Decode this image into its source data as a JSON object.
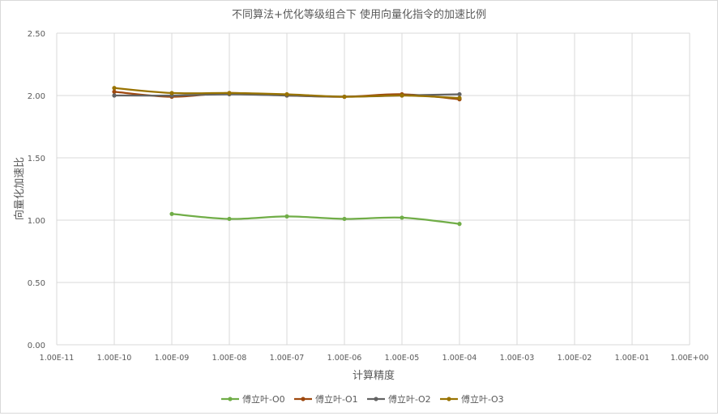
{
  "chart_data": {
    "type": "line",
    "title": "不同算法+优化等级组合下 使用向量化指令的加速比例",
    "xlabel": "计算精度",
    "ylabel": "向量化加速比",
    "x_scale": "log",
    "x_ticks": [
      "1.00E-11",
      "1.00E-10",
      "1.00E-09",
      "1.00E-08",
      "1.00E-07",
      "1.00E-06",
      "1.00E-05",
      "1.00E-04",
      "1.00E-03",
      "1.00E-02",
      "1.00E-01",
      "1.00E+00"
    ],
    "x_tick_values": [
      1e-11,
      1e-10,
      1e-09,
      1e-08,
      1e-07,
      1e-06,
      1e-05,
      0.0001,
      0.001,
      0.01,
      0.1,
      1
    ],
    "ylim": [
      0,
      2.5
    ],
    "y_ticks": [
      "0.00",
      "0.50",
      "1.00",
      "1.50",
      "2.00",
      "2.50"
    ],
    "y_tick_values": [
      0,
      0.5,
      1,
      1.5,
      2,
      2.5
    ],
    "grid": true,
    "legend_position": "bottom",
    "series": [
      {
        "name": "傅立叶-O0",
        "color": "#70ad47",
        "x": [
          1e-09,
          1e-08,
          1e-07,
          1e-06,
          1e-05,
          0.0001
        ],
        "values": [
          1.05,
          1.01,
          1.03,
          1.01,
          1.02,
          0.97
        ]
      },
      {
        "name": "傅立叶-O1",
        "color": "#9e480e",
        "x": [
          1e-10,
          1e-09,
          1e-08,
          1e-07,
          1e-06,
          1e-05,
          0.0001
        ],
        "values": [
          2.03,
          1.99,
          2.02,
          2.0,
          1.99,
          2.01,
          1.97
        ]
      },
      {
        "name": "傅立叶-O2",
        "color": "#636363",
        "x": [
          1e-10,
          1e-09,
          1e-08,
          1e-07,
          1e-06,
          1e-05,
          0.0001
        ],
        "values": [
          2.0,
          2.0,
          2.01,
          2.0,
          1.99,
          2.0,
          2.01
        ]
      },
      {
        "name": "傅立叶-O3",
        "color": "#997300",
        "x": [
          1e-10,
          1e-09,
          1e-08,
          1e-07,
          1e-06,
          1e-05,
          0.0001
        ],
        "values": [
          2.06,
          2.02,
          2.02,
          2.01,
          1.99,
          2.0,
          1.98
        ]
      }
    ]
  }
}
